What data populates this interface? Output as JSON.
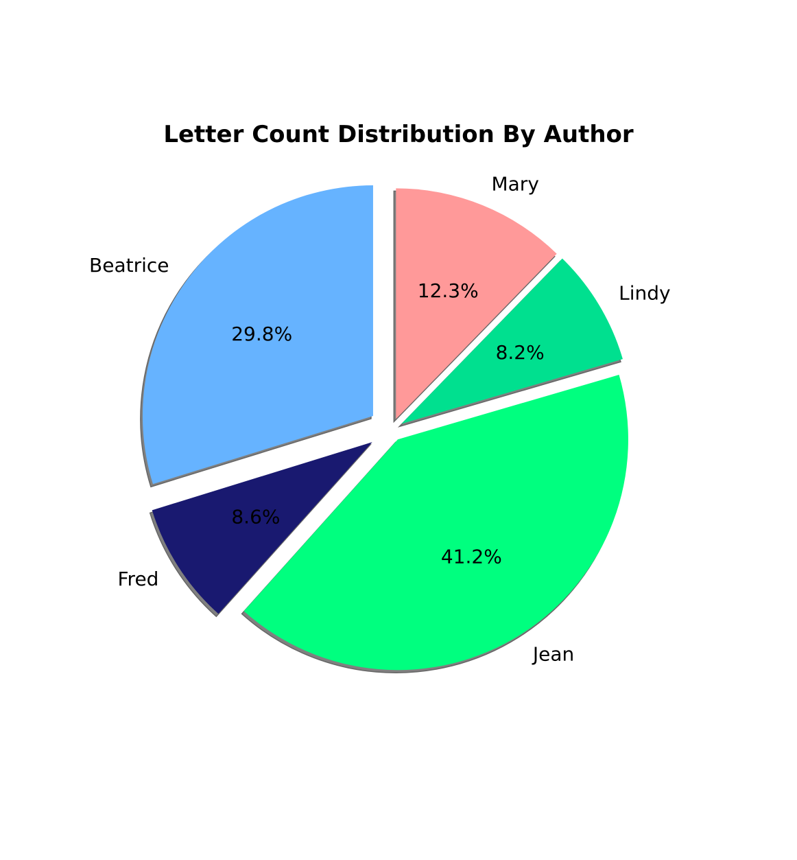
{
  "chart_data": {
    "type": "pie",
    "title": "Letter Count Distribution By Author",
    "slices": [
      {
        "label": "Mary",
        "value": 12.3,
        "pct_label": "12.3%",
        "color": "#ff9999",
        "explode": 0.05
      },
      {
        "label": "Lindy",
        "value": 8.2,
        "pct_label": "8.2%",
        "color": "#00e08f",
        "explode": 0.05
      },
      {
        "label": "Jean",
        "value": 41.2,
        "pct_label": "41.2%",
        "color": "#00ff7f",
        "explode": 0.05
      },
      {
        "label": "Fred",
        "value": 8.6,
        "pct_label": "8.6%",
        "color": "#191970",
        "explode": 0.1
      },
      {
        "label": "Beatrice",
        "value": 29.8,
        "pct_label": "29.8%",
        "color": "#66b3ff",
        "explode": 0.1
      }
    ],
    "start_angle": 90,
    "direction": "clockwise",
    "shadow": true
  }
}
